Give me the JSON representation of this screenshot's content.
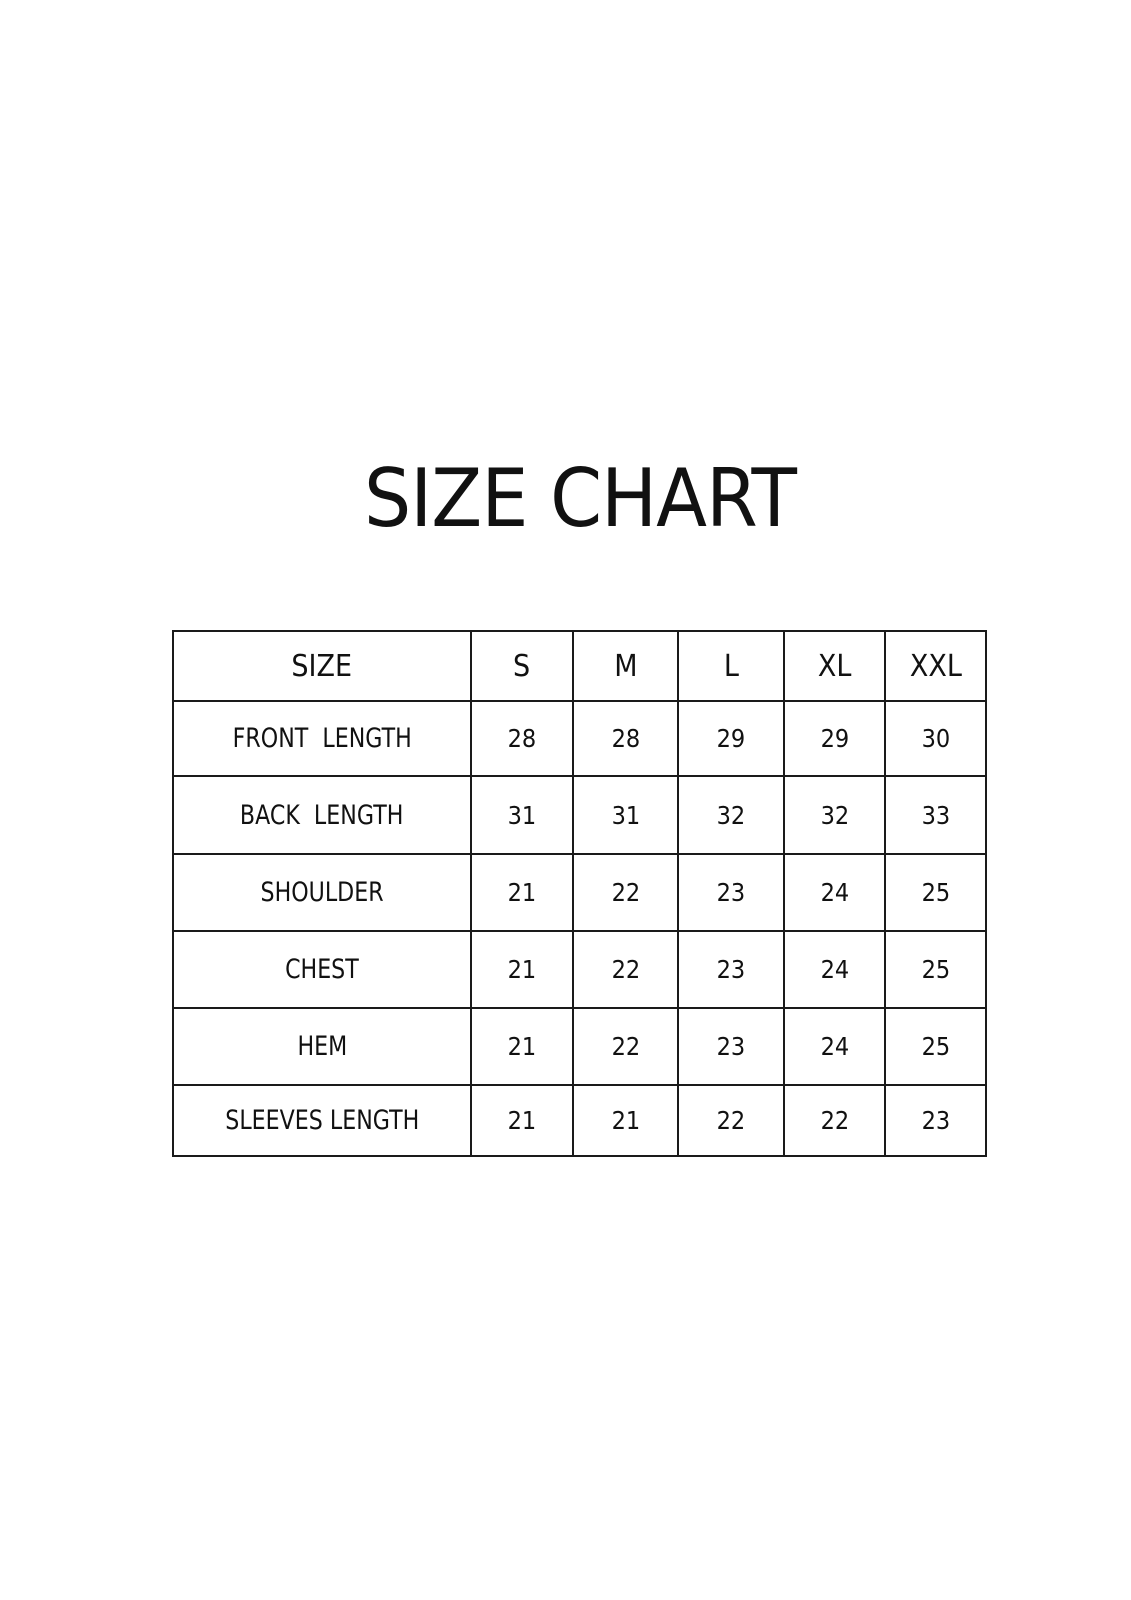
{
  "title": "SIZE CHART",
  "table": {
    "header": [
      "SIZE",
      "S",
      "M",
      "L",
      "XL",
      "XXL"
    ],
    "rows": [
      {
        "label": "FRONT  LENGTH",
        "values": [
          "28",
          "28",
          "29",
          "29",
          "30"
        ]
      },
      {
        "label": "BACK  LENGTH",
        "values": [
          "31",
          "31",
          "32",
          "32",
          "33"
        ]
      },
      {
        "label": "SHOULDER",
        "values": [
          "21",
          "22",
          "23",
          "24",
          "25"
        ]
      },
      {
        "label": "CHEST",
        "values": [
          "21",
          "22",
          "23",
          "24",
          "25"
        ]
      },
      {
        "label": "HEM",
        "values": [
          "21",
          "22",
          "23",
          "24",
          "25"
        ]
      },
      {
        "label": "SLEEVES LENGTH",
        "values": [
          "21",
          "21",
          "22",
          "22",
          "23"
        ]
      }
    ]
  }
}
